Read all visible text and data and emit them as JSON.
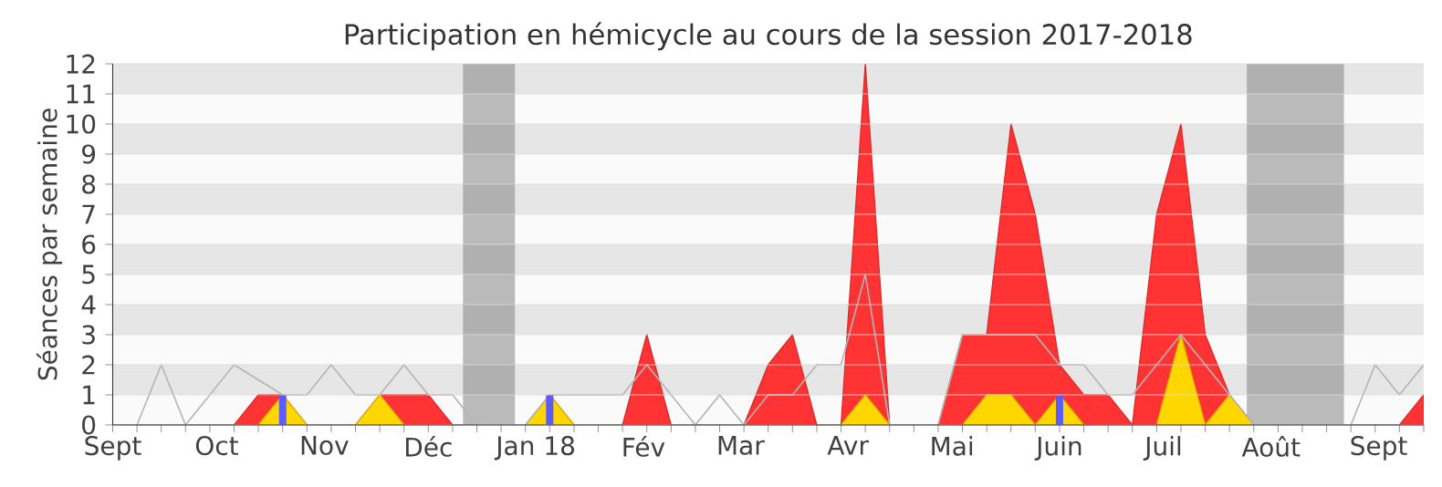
{
  "chart_data": {
    "type": "area",
    "title": "Participation en hémicycle au cours de la session 2017-2018",
    "ylabel": "Séances par semaine",
    "x": [
      "2017-09-01",
      "2017-09-08",
      "2017-09-15",
      "2017-09-22",
      "2017-09-29",
      "2017-10-06",
      "2017-10-13",
      "2017-10-20",
      "2017-10-27",
      "2017-11-03",
      "2017-11-10",
      "2017-11-17",
      "2017-11-24",
      "2017-12-01",
      "2017-12-08",
      "2017-12-15",
      "2017-12-22",
      "2017-12-29",
      "2018-01-05",
      "2018-01-12",
      "2018-01-19",
      "2018-01-26",
      "2018-02-02",
      "2018-02-09",
      "2018-02-16",
      "2018-02-23",
      "2018-03-02",
      "2018-03-09",
      "2018-03-16",
      "2018-03-23",
      "2018-03-30",
      "2018-04-06",
      "2018-04-13",
      "2018-04-20",
      "2018-04-27",
      "2018-05-04",
      "2018-05-11",
      "2018-05-18",
      "2018-05-25",
      "2018-06-01",
      "2018-06-08",
      "2018-06-15",
      "2018-06-22",
      "2018-06-29",
      "2018-07-06",
      "2018-07-13",
      "2018-07-20",
      "2018-07-27",
      "2018-08-03",
      "2018-08-10",
      "2018-08-17",
      "2018-08-24",
      "2018-08-31",
      "2018-09-07",
      "2018-09-14"
    ],
    "xlim": [
      "2017-09-01",
      "2018-09-14"
    ],
    "ylim": [
      0,
      12
    ],
    "xticks": [
      {
        "value": "2017-09-01",
        "label": "Sept"
      },
      {
        "value": "2017-10-01",
        "label": "Oct"
      },
      {
        "value": "2017-11-01",
        "label": "Nov"
      },
      {
        "value": "2017-12-01",
        "label": "Déc"
      },
      {
        "value": "2018-01-01",
        "label": "Jan 18"
      },
      {
        "value": "2018-02-01",
        "label": "Fév"
      },
      {
        "value": "2018-03-01",
        "label": "Mar"
      },
      {
        "value": "2018-04-01",
        "label": "Avr"
      },
      {
        "value": "2018-05-01",
        "label": "Mai"
      },
      {
        "value": "2018-06-01",
        "label": "Juin"
      },
      {
        "value": "2018-07-01",
        "label": "Juil"
      },
      {
        "value": "2018-08-01",
        "label": "Août"
      },
      {
        "value": "2018-09-01",
        "label": "Sept"
      }
    ],
    "yticks": [
      0,
      1,
      2,
      3,
      4,
      5,
      6,
      7,
      8,
      9,
      10,
      11,
      12
    ],
    "grid": "y",
    "marker": "none",
    "line_style": "solid",
    "bands": [
      {
        "axis": "x",
        "from": "2017-12-11",
        "to": "2017-12-26",
        "color": "#7a7a7a"
      },
      {
        "axis": "x",
        "from": "2018-07-25",
        "to": "2018-08-22",
        "color": "#7a7a7a"
      }
    ],
    "series": [
      {
        "type": "line",
        "color": "#b4b4b4",
        "values": [
          0,
          0,
          2,
          0,
          1,
          2,
          1.5,
          1,
          1,
          2,
          1,
          1,
          2,
          1,
          1,
          0,
          0,
          0,
          1,
          1,
          1,
          1,
          2,
          1,
          0,
          1,
          0,
          1,
          1,
          2,
          2,
          5,
          0,
          0,
          0,
          3,
          3,
          3,
          3,
          2,
          2,
          1,
          1,
          2,
          3,
          2,
          1,
          0,
          0,
          0,
          0,
          0,
          2,
          1,
          2
        ]
      },
      {
        "color": "#ff3333",
        "values": [
          0,
          0,
          0,
          0,
          0,
          0,
          1,
          1,
          0,
          0,
          0,
          1,
          1,
          1,
          0,
          0,
          0,
          0,
          1,
          0,
          0,
          0,
          3,
          0,
          0,
          0,
          0,
          2,
          3,
          0,
          0,
          12,
          0,
          0,
          0,
          3,
          3,
          10,
          7,
          2,
          1,
          1,
          0,
          7,
          10,
          3,
          1,
          0,
          0,
          0,
          0,
          0,
          0,
          0,
          1
        ]
      },
      {
        "color": "#ffd700",
        "values": [
          0,
          0,
          0,
          0,
          0,
          0,
          0,
          1,
          0,
          0,
          0,
          1,
          0,
          0,
          0,
          0,
          0,
          0,
          1,
          0,
          0,
          0,
          0,
          0,
          0,
          0,
          0,
          0,
          0,
          0,
          0,
          1,
          0,
          0,
          0,
          0,
          1,
          1,
          0,
          1,
          0,
          0,
          0,
          0,
          3,
          0,
          1,
          0,
          0,
          0,
          0,
          0,
          0,
          0,
          0
        ]
      },
      {
        "type": "bar",
        "color": "#5b5bff",
        "values": [
          null,
          null,
          null,
          null,
          null,
          null,
          null,
          1,
          null,
          null,
          null,
          null,
          null,
          null,
          null,
          null,
          null,
          null,
          1,
          null,
          null,
          null,
          null,
          null,
          null,
          null,
          null,
          null,
          null,
          null,
          null,
          null,
          null,
          null,
          null,
          null,
          null,
          null,
          null,
          1,
          null,
          null,
          null,
          null,
          null,
          null,
          null,
          null,
          null,
          null,
          null,
          null,
          null,
          null,
          null
        ]
      }
    ]
  }
}
